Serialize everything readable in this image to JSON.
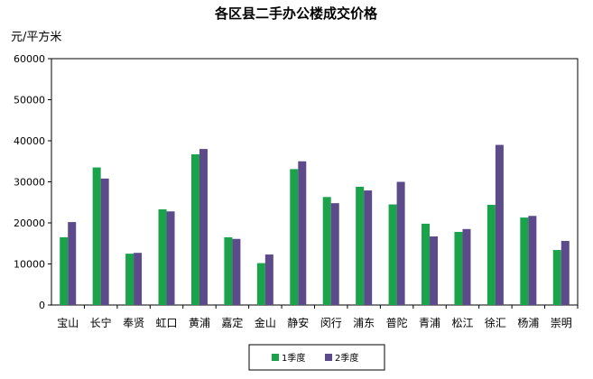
{
  "chart_data": {
    "type": "bar",
    "title": "各区县二手办公楼成交价格",
    "ylabel": "元/平方米",
    "xlabel": "",
    "ylim": [
      0,
      60000
    ],
    "yticks": [
      0,
      10000,
      20000,
      30000,
      40000,
      50000,
      60000
    ],
    "grid": false,
    "legend": "bottom",
    "categories": [
      "宝山",
      "长宁",
      "奉贤",
      "虹口",
      "黄浦",
      "嘉定",
      "金山",
      "静安",
      "闵行",
      "浦东",
      "普陀",
      "青浦",
      "松江",
      "徐汇",
      "杨浦",
      "崇明"
    ],
    "series": [
      {
        "name": "1季度",
        "color": "#1aa34a",
        "values": [
          16500,
          33500,
          12500,
          23300,
          36700,
          16500,
          10200,
          33100,
          26300,
          28800,
          24500,
          19800,
          17800,
          24400,
          21300,
          13400
        ]
      },
      {
        "name": "2季度",
        "color": "#5c4a8a",
        "values": [
          20200,
          30800,
          12700,
          22800,
          38000,
          16100,
          12300,
          35000,
          24800,
          27900,
          30000,
          16700,
          18500,
          39000,
          21700,
          15600
        ]
      }
    ]
  }
}
